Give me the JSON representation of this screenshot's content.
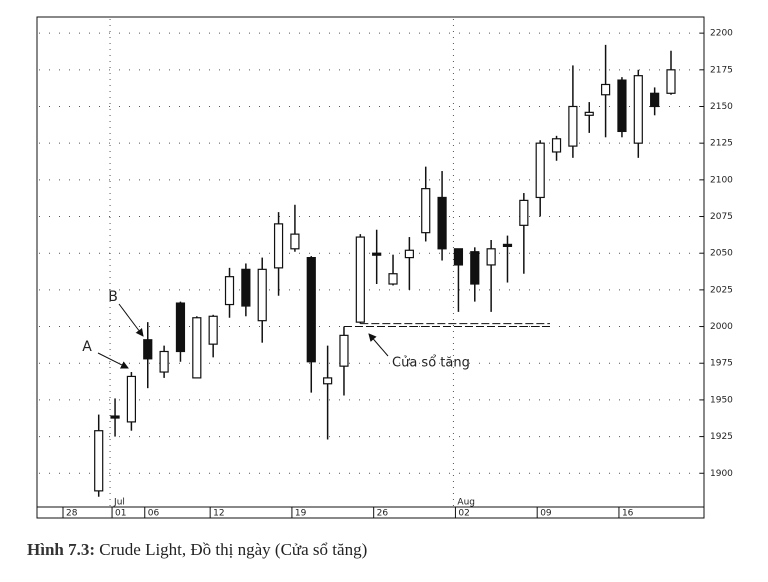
{
  "chart_data": {
    "type": "candlestick",
    "categories": [
      "28",
      null,
      null,
      "01",
      null,
      "06",
      null,
      null,
      null,
      "12",
      null,
      null,
      null,
      null,
      "19",
      null,
      null,
      null,
      null,
      "26",
      null,
      null,
      null,
      null,
      "02",
      null,
      null,
      null,
      null,
      "09",
      null,
      null,
      null,
      null,
      "16",
      null,
      null,
      null
    ],
    "category_months": [
      null,
      null,
      null,
      "Jul",
      null,
      null,
      null,
      null,
      null,
      null,
      null,
      null,
      null,
      null,
      null,
      null,
      null,
      null,
      null,
      null,
      null,
      null,
      null,
      null,
      "Aug",
      null,
      null,
      null,
      null,
      null,
      null,
      null,
      null,
      null,
      null,
      null,
      null,
      null
    ],
    "open": [
      null,
      null,
      1888,
      1939,
      1935,
      1991,
      1969,
      2016,
      1965,
      1988,
      2015,
      2039,
      2004,
      2040,
      2053,
      2047,
      1961,
      1973,
      2003,
      2050,
      2029,
      2047,
      2064,
      2088,
      2053,
      2051,
      2042,
      2056,
      2069,
      2088,
      2119,
      2123,
      2144,
      2158,
      2168,
      2125,
      2159,
      2159
    ],
    "high": [
      null,
      null,
      1940,
      1951,
      1969,
      2003,
      1987,
      2017,
      2007,
      2008,
      2040,
      2043,
      2047,
      2078,
      2083,
      2048,
      1987,
      2000,
      2063,
      2066,
      2049,
      2061,
      2109,
      2106,
      2053,
      2054,
      2059,
      2062,
      2091,
      2127,
      2130,
      2178,
      2153,
      2192,
      2170,
      2175,
      2163,
      2188
    ],
    "low": [
      null,
      null,
      1884,
      1925,
      1929,
      1958,
      1965,
      1976,
      1965,
      1979,
      2006,
      2007,
      1989,
      2021,
      2051,
      1955,
      1923,
      1953,
      2002,
      2029,
      2028,
      2025,
      2058,
      2045,
      2010,
      2017,
      2010,
      2030,
      2036,
      2075,
      2113,
      2115,
      2132,
      2129,
      2129,
      2115,
      2144,
      2158
    ],
    "close": [
      null,
      null,
      1929,
      1938,
      1966,
      1978,
      1983,
      1983,
      2006,
      2007,
      2034,
      2014,
      2039,
      2070,
      2063,
      1976,
      1965,
      1994,
      2061,
      2049,
      2036,
      2052,
      2094,
      2053,
      2042,
      2029,
      2053,
      2055,
      2086,
      2125,
      2128,
      2150,
      2146,
      2165,
      2133,
      2171,
      2150,
      2175
    ],
    "ylim": [
      1877,
      2211
    ],
    "yticks": [
      1900,
      1925,
      1950,
      1975,
      2000,
      2025,
      2050,
      2075,
      2100,
      2125,
      2150,
      2175,
      2200
    ],
    "grid": true,
    "annotations": [
      "A",
      "B",
      "Cửa sổ tăng"
    ],
    "caption_label": "Hình 7.3:",
    "caption": "Crude Light, Đồ thị ngày (Cửa sổ tăng)"
  }
}
